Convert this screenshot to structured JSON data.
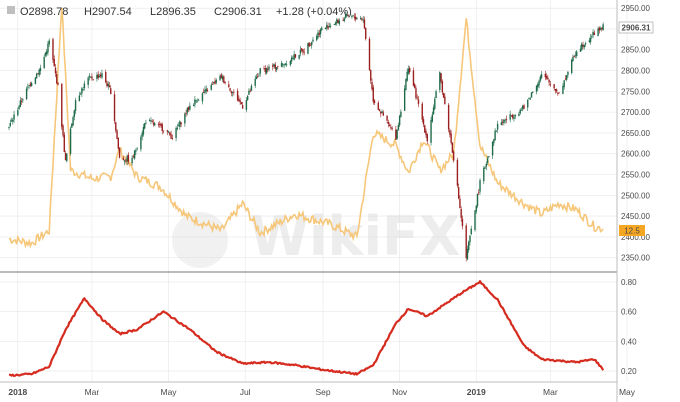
{
  "header": {
    "open": "O2898.78",
    "high": "H2907.54",
    "low": "L2896.35",
    "close": "C2906.31",
    "change": "+1.28 (+0.04%)"
  },
  "watermark": {
    "text": "WikiFX"
  },
  "colors": {
    "up": "#1e6b4a",
    "down": "#9b1f1f",
    "vix": "#f6c77a",
    "vol": "#d62b1f",
    "price_tag": "#ffffff",
    "vix_tag": "#f5a623",
    "grid": "#e6e6e6",
    "axis": "#999999"
  },
  "chart_data": [
    {
      "type": "candlestick",
      "instrument_tags": {
        "price": "2906.31",
        "vix": "12.5"
      },
      "yticks": [
        2350,
        2400,
        2450,
        2500,
        2550,
        2600,
        2650,
        2700,
        2750,
        2800,
        2850,
        2900,
        2950
      ],
      "ylim": [
        2330,
        2960
      ],
      "x_labels": [
        "2018",
        "Mar",
        "May",
        "Jul",
        "Sep",
        "Nov",
        "2019",
        "Mar",
        "May"
      ],
      "price_path": [
        [
          "2017-12-25",
          2665
        ],
        [
          "2018-01-05",
          2735
        ],
        [
          "2018-01-12",
          2775
        ],
        [
          "2018-01-19",
          2805
        ],
        [
          "2018-01-26",
          2870
        ],
        [
          "2018-02-02",
          2760
        ],
        [
          "2018-02-08",
          2580
        ],
        [
          "2018-02-16",
          2730
        ],
        [
          "2018-02-26",
          2780
        ],
        [
          "2018-03-09",
          2790
        ],
        [
          "2018-03-16",
          2750
        ],
        [
          "2018-03-23",
          2590
        ],
        [
          "2018-04-02",
          2585
        ],
        [
          "2018-04-13",
          2680
        ],
        [
          "2018-04-27",
          2660
        ],
        [
          "2018-05-04",
          2640
        ],
        [
          "2018-05-18",
          2715
        ],
        [
          "2018-06-12",
          2785
        ],
        [
          "2018-06-29",
          2715
        ],
        [
          "2018-07-13",
          2800
        ],
        [
          "2018-07-31",
          2815
        ],
        [
          "2018-08-17",
          2850
        ],
        [
          "2018-08-31",
          2900
        ],
        [
          "2018-09-21",
          2930
        ],
        [
          "2018-10-03",
          2925
        ],
        [
          "2018-10-11",
          2730
        ],
        [
          "2018-10-29",
          2640
        ],
        [
          "2018-11-08",
          2810
        ],
        [
          "2018-11-23",
          2635
        ],
        [
          "2018-12-03",
          2790
        ],
        [
          "2018-12-14",
          2590
        ],
        [
          "2018-12-24",
          2350
        ],
        [
          "2019-01-04",
          2530
        ],
        [
          "2019-01-18",
          2670
        ],
        [
          "2019-02-08",
          2710
        ],
        [
          "2019-02-22",
          2790
        ],
        [
          "2019-03-08",
          2745
        ],
        [
          "2019-03-22",
          2850
        ],
        [
          "2019-04-05",
          2890
        ],
        [
          "2019-04-12",
          2906
        ]
      ],
      "vix_path": [
        [
          "2017-12-25",
          2395
        ],
        [
          "2018-01-12",
          2385
        ],
        [
          "2018-01-26",
          2415
        ],
        [
          "2018-02-05",
          2960
        ],
        [
          "2018-02-12",
          2560
        ],
        [
          "2018-03-01",
          2540
        ],
        [
          "2018-03-16",
          2545
        ],
        [
          "2018-03-23",
          2610
        ],
        [
          "2018-04-06",
          2545
        ],
        [
          "2018-04-25",
          2520
        ],
        [
          "2018-05-15",
          2450
        ],
        [
          "2018-06-12",
          2415
        ],
        [
          "2018-06-29",
          2480
        ],
        [
          "2018-07-13",
          2410
        ],
        [
          "2018-08-10",
          2455
        ],
        [
          "2018-09-07",
          2430
        ],
        [
          "2018-09-28",
          2400
        ],
        [
          "2018-10-11",
          2650
        ],
        [
          "2018-10-29",
          2620
        ],
        [
          "2018-11-08",
          2555
        ],
        [
          "2018-11-20",
          2635
        ],
        [
          "2018-12-03",
          2560
        ],
        [
          "2018-12-14",
          2600
        ],
        [
          "2018-12-24",
          2925
        ],
        [
          "2019-01-04",
          2620
        ],
        [
          "2019-01-18",
          2530
        ],
        [
          "2019-02-08",
          2480
        ],
        [
          "2019-02-22",
          2455
        ],
        [
          "2019-03-08",
          2480
        ],
        [
          "2019-03-22",
          2465
        ],
        [
          "2019-04-05",
          2425
        ],
        [
          "2019-04-12",
          2420
        ]
      ]
    },
    {
      "type": "line",
      "series": [
        {
          "values": [
            [
              "2017-12-25",
              0.17
            ],
            [
              "2018-01-12",
              0.18
            ],
            [
              "2018-01-26",
              0.23
            ],
            [
              "2018-02-08",
              0.48
            ],
            [
              "2018-02-23",
              0.69
            ],
            [
              "2018-03-09",
              0.55
            ],
            [
              "2018-03-23",
              0.45
            ],
            [
              "2018-04-06",
              0.48
            ],
            [
              "2018-04-27",
              0.6
            ],
            [
              "2018-05-18",
              0.48
            ],
            [
              "2018-06-08",
              0.33
            ],
            [
              "2018-06-29",
              0.25
            ],
            [
              "2018-07-20",
              0.26
            ],
            [
              "2018-08-10",
              0.24
            ],
            [
              "2018-08-31",
              0.21
            ],
            [
              "2018-09-28",
              0.18
            ],
            [
              "2018-10-11",
              0.24
            ],
            [
              "2018-10-29",
              0.52
            ],
            [
              "2018-11-08",
              0.62
            ],
            [
              "2018-11-23",
              0.57
            ],
            [
              "2018-12-07",
              0.65
            ],
            [
              "2018-12-21",
              0.73
            ],
            [
              "2019-01-04",
              0.8
            ],
            [
              "2019-01-18",
              0.68
            ],
            [
              "2019-02-08",
              0.37
            ],
            [
              "2019-02-22",
              0.28
            ],
            [
              "2019-03-22",
              0.26
            ],
            [
              "2019-04-05",
              0.28
            ],
            [
              "2019-04-12",
              0.21
            ]
          ]
        }
      ],
      "yticks": [
        0.2,
        0.4,
        0.6,
        0.8
      ],
      "ylim": [
        0.14,
        0.84
      ]
    }
  ]
}
